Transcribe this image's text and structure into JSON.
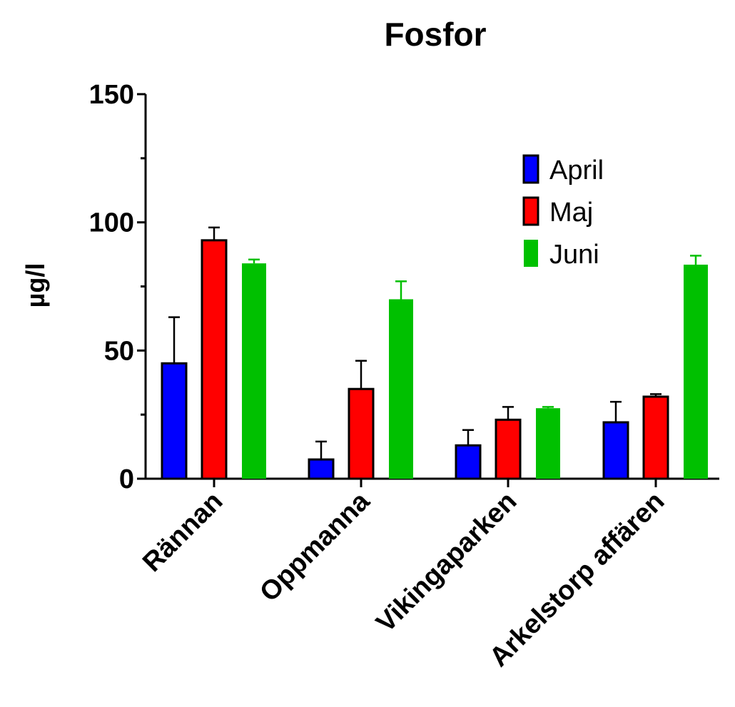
{
  "chart_data": {
    "type": "bar",
    "title": "Fosfor",
    "xlabel": "",
    "ylabel": "µg/l",
    "ylim": [
      0,
      150
    ],
    "yticks": [
      0,
      50,
      100,
      150
    ],
    "categories": [
      "Rännan",
      "Oppmanna",
      "Vikingaparken",
      "Arkelstorp affären"
    ],
    "series": [
      {
        "name": "April",
        "color": "#0000ff",
        "outlined": true,
        "values": [
          45,
          7.5,
          13,
          22
        ],
        "errors": [
          18,
          7,
          6,
          8
        ]
      },
      {
        "name": "Maj",
        "color": "#ff0000",
        "outlined": true,
        "values": [
          93,
          35,
          23,
          32
        ],
        "errors": [
          5,
          11,
          5,
          1
        ]
      },
      {
        "name": "Juni",
        "color": "#00c000",
        "outlined": false,
        "values": [
          84,
          70,
          27.5,
          83.5
        ],
        "errors": [
          1.5,
          7,
          0.5,
          3.5
        ]
      }
    ],
    "legend": "top-right",
    "grid": false
  }
}
